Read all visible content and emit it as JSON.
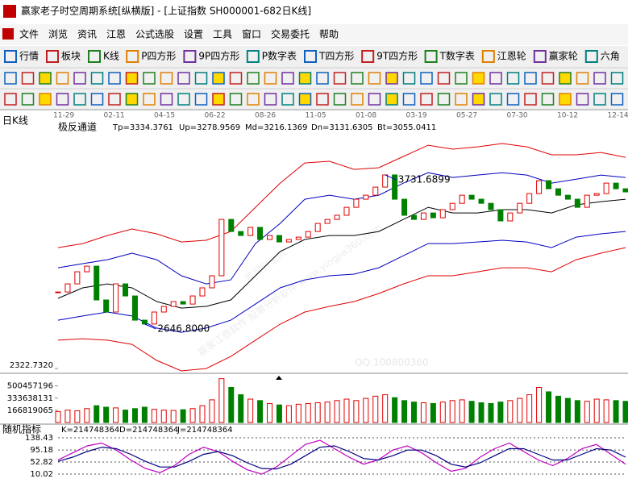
{
  "window": {
    "title": "赢家老子时空周期系统[纵横版] - [上证指数  SH000001-682日K线]",
    "menu": [
      "文件",
      "浏览",
      "资讯",
      "江恩",
      "公式选股",
      "设置",
      "工具",
      "窗口",
      "交易委托",
      "帮助"
    ],
    "toolbar": [
      "行情",
      "板块",
      "K线",
      "P四方形",
      "9P四方形",
      "P数字表",
      "T四方形",
      "9T四方形",
      "T数字表",
      "江恩轮",
      "赢家轮",
      "六角"
    ],
    "watermark": [
      "赢家财富网",
      "赢家江恩软件  股票分析软件  www.yingjia360.com",
      "QQ:100800360"
    ]
  },
  "chart_data": [
    {
      "type": "candlestick",
      "title": "日K线",
      "indicator": "极反通道",
      "indicator_values": [
        "Tp=3334.3761",
        "Up=3278.9569",
        "Md=3216.1369",
        "Dn=3131.6305",
        "Bt=3055.0411"
      ],
      "xtick_labels": [
        "11-29",
        "02-11",
        "04-15",
        "06-22",
        "08-26",
        "11-05",
        "01-08",
        "03-19",
        "05-27",
        "07-30",
        "10-12",
        "12-14"
      ],
      "close": [
        2880,
        2939,
        3027,
        3068,
        2822,
        2734,
        2939,
        2851,
        2675,
        2646.8,
        2734,
        2775,
        2810,
        2792,
        2851,
        2910,
        2998,
        3408,
        3320,
        3291,
        3350,
        3262,
        3291,
        3244,
        3262,
        3279,
        3320,
        3379,
        3408,
        3438,
        3496,
        3555,
        3584,
        3643,
        3731.6899,
        3555,
        3438,
        3408,
        3455,
        3420,
        3479,
        3525,
        3584,
        3555,
        3525,
        3479,
        3397,
        3455,
        3525,
        3596,
        3690,
        3631,
        3584,
        3555,
        3496,
        3584,
        3596,
        3672,
        3631,
        3608
      ],
      "up_color": "#e00000",
      "down_color": "#008000",
      "channels": [
        {
          "color": "#e00000",
          "values": [
            3203,
            3232,
            3291,
            3338,
            3303,
            3244,
            3256,
            3320,
            3496,
            3672,
            3819,
            3831,
            3772,
            3784,
            3866,
            3948,
            3919,
            3936,
            3960,
            3936,
            3878,
            3878,
            3895,
            3860
          ]
        },
        {
          "color": "#0000c0",
          "values": [
            3056,
            3086,
            3115,
            3162,
            3115,
            2998,
            2939,
            2968,
            3232,
            3379,
            3555,
            3584,
            3555,
            3584,
            3672,
            3748,
            3713,
            3731,
            3748,
            3731,
            3672,
            3701,
            3731,
            3713
          ]
        },
        {
          "color": "#000000",
          "values": [
            2834,
            2910,
            2939,
            2910,
            2810,
            2763,
            2775,
            2822,
            2998,
            3174,
            3262,
            3291,
            3291,
            3320,
            3408,
            3496,
            3455,
            3455,
            3479,
            3479,
            3455,
            3514,
            3537,
            3555
          ]
        },
        {
          "color": "#0000c0",
          "values": [
            2675,
            2705,
            2734,
            2705,
            2617,
            2587,
            2617,
            2675,
            2792,
            2910,
            2968,
            2998,
            3010,
            3056,
            3144,
            3232,
            3232,
            3244,
            3256,
            3244,
            3203,
            3279,
            3303,
            3320
          ]
        },
        {
          "color": "#e00000",
          "values": [
            2529,
            2540,
            2529,
            2499,
            2382,
            2306,
            2323,
            2411,
            2529,
            2646,
            2734,
            2775,
            2810,
            2869,
            2939,
            2998,
            2998,
            3027,
            3056,
            3056,
            3027,
            3115,
            3162,
            3203
          ]
        }
      ],
      "annotations": [
        3731.6899,
        {
          "value": 2646.8,
          "label": "2646.8000"
        }
      ],
      "ylim": [
        2294,
        4054
      ],
      "yticks": [
        {
          "value": 2322.732,
          "label": "2322.7320"
        }
      ],
      "grid": false
    },
    {
      "type": "bar",
      "values": [
        150000000,
        170000000,
        160000000,
        190000000,
        230000000,
        210000000,
        200000000,
        170000000,
        190000000,
        210000000,
        180000000,
        170000000,
        165000000,
        175000000,
        190000000,
        230000000,
        310000000,
        600000000,
        480000000,
        380000000,
        320000000,
        300000000,
        260000000,
        240000000,
        230000000,
        250000000,
        260000000,
        270000000,
        280000000,
        300000000,
        320000000,
        300000000,
        330000000,
        360000000,
        380000000,
        340000000,
        300000000,
        280000000,
        270000000,
        260000000,
        280000000,
        300000000,
        310000000,
        290000000,
        270000000,
        260000000,
        280000000,
        300000000,
        330000000,
        380000000,
        480000000,
        420000000,
        360000000,
        330000000,
        300000000,
        290000000,
        320000000,
        310000000,
        300000000,
        290000000
      ],
      "ylim": [
        0,
        640000000
      ],
      "yticks": [
        500457196,
        333638131,
        166819065
      ],
      "grid": false
    },
    {
      "type": "line",
      "title": "随机指标",
      "indicator_values": [
        "K=214748364",
        "D=214748364",
        "J=214748364"
      ],
      "series": [
        {
          "color": "#c000c0",
          "values": [
            60,
            85,
            110,
            120,
            95,
            60,
            30,
            15,
            40,
            80,
            105,
            90,
            55,
            25,
            10,
            35,
            75,
            115,
            130,
            100,
            70,
            45,
            60,
            95,
            110,
            85,
            50,
            20,
            30,
            70,
            100,
            120,
            90,
            60,
            40,
            65,
            100,
            115,
            80,
            45
          ]
        },
        {
          "color": "#000080",
          "values": [
            55,
            70,
            90,
            105,
            100,
            80,
            55,
            35,
            35,
            55,
            80,
            90,
            75,
            50,
            30,
            28,
            45,
            75,
            105,
            110,
            90,
            65,
            60,
            75,
            95,
            95,
            75,
            45,
            35,
            50,
            75,
            100,
            100,
            80,
            60,
            60,
            80,
            100,
            95,
            70
          ]
        }
      ],
      "ylim": [
        -30,
        147
      ],
      "yticks": [
        138.43,
        95.18,
        52.82,
        10.02
      ],
      "grid": true
    }
  ]
}
